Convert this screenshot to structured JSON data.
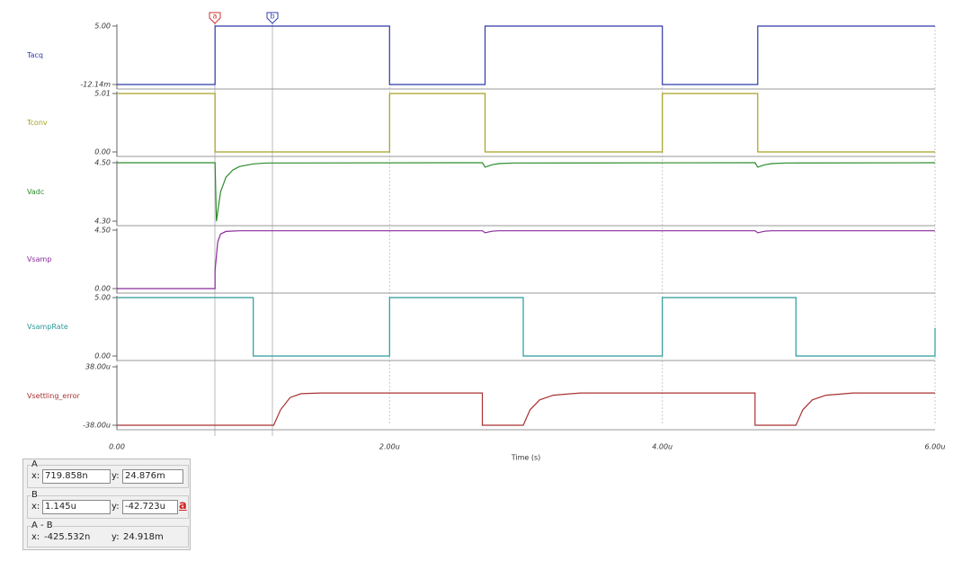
{
  "chart_data": [
    {
      "type": "line",
      "ylabel": "Tacq",
      "xlim": [
        0,
        6e-06
      ],
      "ylim": [
        -0.01214,
        5
      ],
      "yticks": [
        {
          "value": 5,
          "label": "5.00"
        },
        {
          "value": -0.01214,
          "label": "-12.14m"
        }
      ],
      "series": [
        {
          "color": "#2e3aa8",
          "x": [
            0,
            7.2e-07,
            7.2e-07,
            2e-06,
            2e-06,
            2.7e-06,
            2.7e-06,
            4e-06,
            4e-06,
            4.7e-06,
            4.7e-06,
            6e-06
          ],
          "values": [
            -0.01214,
            -0.01214,
            5,
            5,
            -0.01214,
            -0.01214,
            5,
            5,
            -0.01214,
            -0.01214,
            5,
            5
          ]
        }
      ]
    },
    {
      "type": "line",
      "ylabel": "Tconv",
      "xlim": [
        0,
        6e-06
      ],
      "ylim": [
        0,
        5.01
      ],
      "yticks": [
        {
          "value": 5.01,
          "label": "5.01"
        },
        {
          "value": 0,
          "label": "0.00"
        }
      ],
      "series": [
        {
          "color": "#a6a020",
          "x": [
            0,
            7.2e-07,
            7.2e-07,
            2e-06,
            2e-06,
            2.7e-06,
            2.7e-06,
            4e-06,
            4e-06,
            4.7e-06,
            4.7e-06,
            6e-06
          ],
          "values": [
            5.01,
            5.01,
            0,
            0,
            5.01,
            5.01,
            0,
            0,
            5.01,
            5.01,
            0,
            0
          ]
        }
      ]
    },
    {
      "type": "line",
      "ylabel": "Vadc",
      "xlim": [
        0,
        6e-06
      ],
      "ylim": [
        4.3,
        4.5
      ],
      "yticks": [
        {
          "value": 4.5,
          "label": "4.50"
        },
        {
          "value": 4.3,
          "label": "4.30"
        }
      ],
      "series": [
        {
          "color": "#2a8c2a",
          "x": [
            0,
            7.2e-07,
            7.3e-07,
            7.6e-07,
            8e-07,
            8.5e-07,
            9e-07,
            1e-06,
            1.1e-06,
            2.68e-06,
            2.7e-06,
            2.75e-06,
            2.8e-06,
            2.9e-06,
            4.68e-06,
            4.7e-06,
            4.75e-06,
            4.8e-06,
            4.9e-06,
            6e-06
          ],
          "values": [
            4.5,
            4.5,
            4.3,
            4.4,
            4.45,
            4.475,
            4.487,
            4.496,
            4.499,
            4.5,
            4.485,
            4.493,
            4.497,
            4.499,
            4.5,
            4.485,
            4.493,
            4.497,
            4.499,
            4.5
          ]
        }
      ]
    },
    {
      "type": "line",
      "ylabel": "Vsamp",
      "xlim": [
        0,
        6e-06
      ],
      "ylim": [
        0,
        4.5
      ],
      "yticks": [
        {
          "value": 4.5,
          "label": "4.50"
        },
        {
          "value": 0,
          "label": "0.00"
        }
      ],
      "series": [
        {
          "color": "#8a2a9c",
          "x": [
            0,
            7.2e-07,
            7.2e-07,
            7.4e-07,
            7.6e-07,
            8e-07,
            9e-07,
            2.68e-06,
            2.7e-06,
            2.75e-06,
            2.8e-06,
            4.68e-06,
            4.7e-06,
            4.75e-06,
            4.8e-06,
            6e-06
          ],
          "values": [
            0,
            0,
            1.4,
            3.6,
            4.2,
            4.4,
            4.45,
            4.45,
            4.3,
            4.42,
            4.45,
            4.45,
            4.3,
            4.42,
            4.45,
            4.45
          ]
        }
      ]
    },
    {
      "type": "line",
      "ylabel": "VsampRate",
      "xlim": [
        0,
        6e-06
      ],
      "ylim": [
        0,
        5
      ],
      "yticks": [
        {
          "value": 5,
          "label": "5.00"
        },
        {
          "value": 0,
          "label": "0.00"
        }
      ],
      "series": [
        {
          "color": "#2a9a9a",
          "x": [
            0,
            1e-06,
            1e-06,
            2e-06,
            2e-06,
            2.98e-06,
            2.98e-06,
            4e-06,
            4e-06,
            4.98e-06,
            4.98e-06,
            6e-06,
            6e-06
          ],
          "values": [
            5,
            5,
            0,
            0,
            5,
            5,
            0,
            0,
            5,
            5,
            0,
            0,
            2.4
          ]
        }
      ]
    },
    {
      "type": "line",
      "ylabel": "Vsettling_error",
      "xlabel": "Time (s)",
      "xlim": [
        0,
        6e-06
      ],
      "ylim": [
        -3.8e-05,
        3.8e-05
      ],
      "xticks": [
        {
          "value": 0,
          "label": "0.00"
        },
        {
          "value": 2e-06,
          "label": "2.00u"
        },
        {
          "value": 4e-06,
          "label": "4.00u"
        },
        {
          "value": 6e-06,
          "label": "6.00u"
        }
      ],
      "yticks": [
        {
          "value": 3.8e-05,
          "label": "38.00u"
        },
        {
          "value": -3.8e-05,
          "label": "-38.00u"
        }
      ],
      "series": [
        {
          "color": "#a83232",
          "x": [
            0,
            1.15e-06,
            1.2e-06,
            1.27e-06,
            1.35e-06,
            1.5e-06,
            2.68e-06,
            2.68e-06,
            2.98e-06,
            3.03e-06,
            3.1e-06,
            3.2e-06,
            3.4e-06,
            4.68e-06,
            4.68e-06,
            4.98e-06,
            5.03e-06,
            5.1e-06,
            5.2e-06,
            5.4e-06,
            6e-06
          ],
          "values": [
            -3.8e-05,
            -3.8e-05,
            -1.8e-05,
            -2e-06,
            3e-06,
            4e-06,
            4e-06,
            -3.8e-05,
            -3.8e-05,
            -1.8e-05,
            -5e-06,
            1e-06,
            4e-06,
            4e-06,
            -3.8e-05,
            -3.8e-05,
            -1.8e-05,
            -5e-06,
            1e-06,
            4e-06,
            4e-06
          ]
        }
      ]
    }
  ],
  "cursor_markers": [
    "a",
    "b"
  ],
  "cursor_panel": {
    "a": {
      "title": "A",
      "x_label": "x:",
      "x": "719.858n",
      "y_label": "y:",
      "y": "24.876m"
    },
    "b": {
      "title": "B",
      "x_label": "x:",
      "x": "1.145u",
      "y_label": "y:",
      "y": "-42.723u",
      "button": "a"
    },
    "diff": {
      "title": "A - B",
      "x_label": "x:",
      "x": "-425.532n",
      "y_label": "y:",
      "y": "24.918m"
    }
  }
}
